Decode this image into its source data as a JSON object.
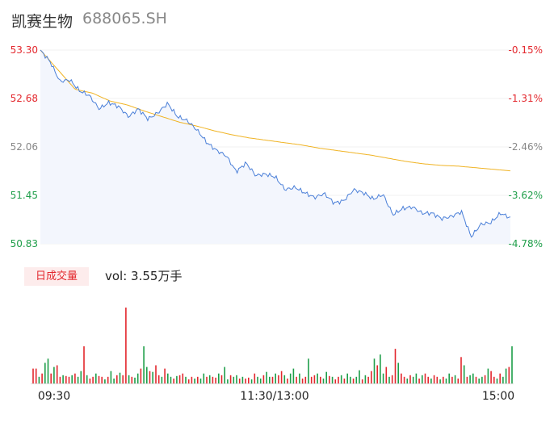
{
  "header": {
    "name": "凯赛生物",
    "code": "688065.SH"
  },
  "volume": {
    "badge": "日成交量",
    "label": "vol: 3.55万手"
  },
  "chart_data": {
    "type": "line",
    "price_axis": {
      "labels": [
        "53.30",
        "52.68",
        "52.06",
        "51.45",
        "50.83"
      ],
      "ylim": [
        50.83,
        53.3
      ],
      "colors": [
        "#e3272d",
        "#e3272d",
        "#888888",
        "#1e9e49",
        "#1e9e49"
      ]
    },
    "pct_axis": {
      "labels": [
        "-0.15%",
        "-1.31%",
        "-2.46%",
        "-3.62%",
        "-4.78%"
      ],
      "colors": [
        "#e3272d",
        "#e3272d",
        "#888888",
        "#1e9e49",
        "#1e9e49"
      ]
    },
    "time_labels": [
      "09:30",
      "11:30/13:00",
      "15:00"
    ],
    "colors": {
      "price": "#4a7fd8",
      "avg": "#f0b323",
      "up": "#e3272d",
      "down": "#1e9e49",
      "fill": "#f3f6fd"
    },
    "price_anchors": [
      53.3,
      53.15,
      52.9,
      52.92,
      52.78,
      52.72,
      52.55,
      52.63,
      52.58,
      52.45,
      52.55,
      52.42,
      52.5,
      52.62,
      52.45,
      52.4,
      52.28,
      52.12,
      52.02,
      51.95,
      51.75,
      51.86,
      51.7,
      51.72,
      51.68,
      51.52,
      51.55,
      51.48,
      51.42,
      51.47,
      51.35,
      51.38,
      51.52,
      51.48,
      51.4,
      51.46,
      51.2,
      51.28,
      51.3,
      51.22,
      51.22,
      51.15,
      51.18,
      51.24,
      50.92,
      51.08,
      51.1,
      51.22,
      51.16
    ],
    "avg_anchors": [
      53.3,
      53.05,
      52.8,
      52.75,
      52.65,
      52.6,
      52.52,
      52.45,
      52.38,
      52.33,
      52.27,
      52.22,
      52.18,
      52.15,
      52.12,
      52.09,
      52.05,
      52.02,
      51.99,
      51.96,
      51.92,
      51.88,
      51.85,
      51.83,
      51.82,
      51.8,
      51.78,
      51.76
    ],
    "volumes": [
      18,
      18,
      8,
      12,
      25,
      30,
      12,
      20,
      22,
      8,
      10,
      9,
      8,
      10,
      12,
      8,
      15,
      45,
      10,
      6,
      8,
      12,
      9,
      8,
      5,
      8,
      15,
      6,
      10,
      13,
      10,
      92,
      10,
      8,
      7,
      12,
      18,
      45,
      20,
      15,
      14,
      22,
      10,
      8,
      18,
      12,
      8,
      6,
      9,
      10,
      12,
      8,
      5,
      8,
      6,
      8,
      6,
      12,
      8,
      10,
      8,
      7,
      12,
      10,
      20,
      5,
      10,
      8,
      10,
      6,
      8,
      6,
      7,
      5,
      12,
      8,
      6,
      10,
      14,
      8,
      8,
      12,
      10,
      15,
      10,
      6,
      12,
      18,
      8,
      12,
      6,
      8,
      30,
      8,
      10,
      12,
      8,
      6,
      14,
      9,
      8,
      5,
      8,
      10,
      6,
      12,
      8,
      6,
      8,
      16,
      5,
      10,
      8,
      15,
      30,
      22,
      35,
      12,
      20,
      8,
      10,
      42,
      25,
      12,
      8,
      6,
      10,
      8,
      12,
      6,
      10,
      12,
      8,
      6,
      10,
      8,
      5,
      8,
      6,
      12,
      8,
      10,
      6,
      32,
      22,
      8,
      10,
      12,
      8,
      6,
      8,
      10,
      18,
      15,
      8,
      6,
      12,
      8,
      18,
      20,
      45
    ]
  }
}
